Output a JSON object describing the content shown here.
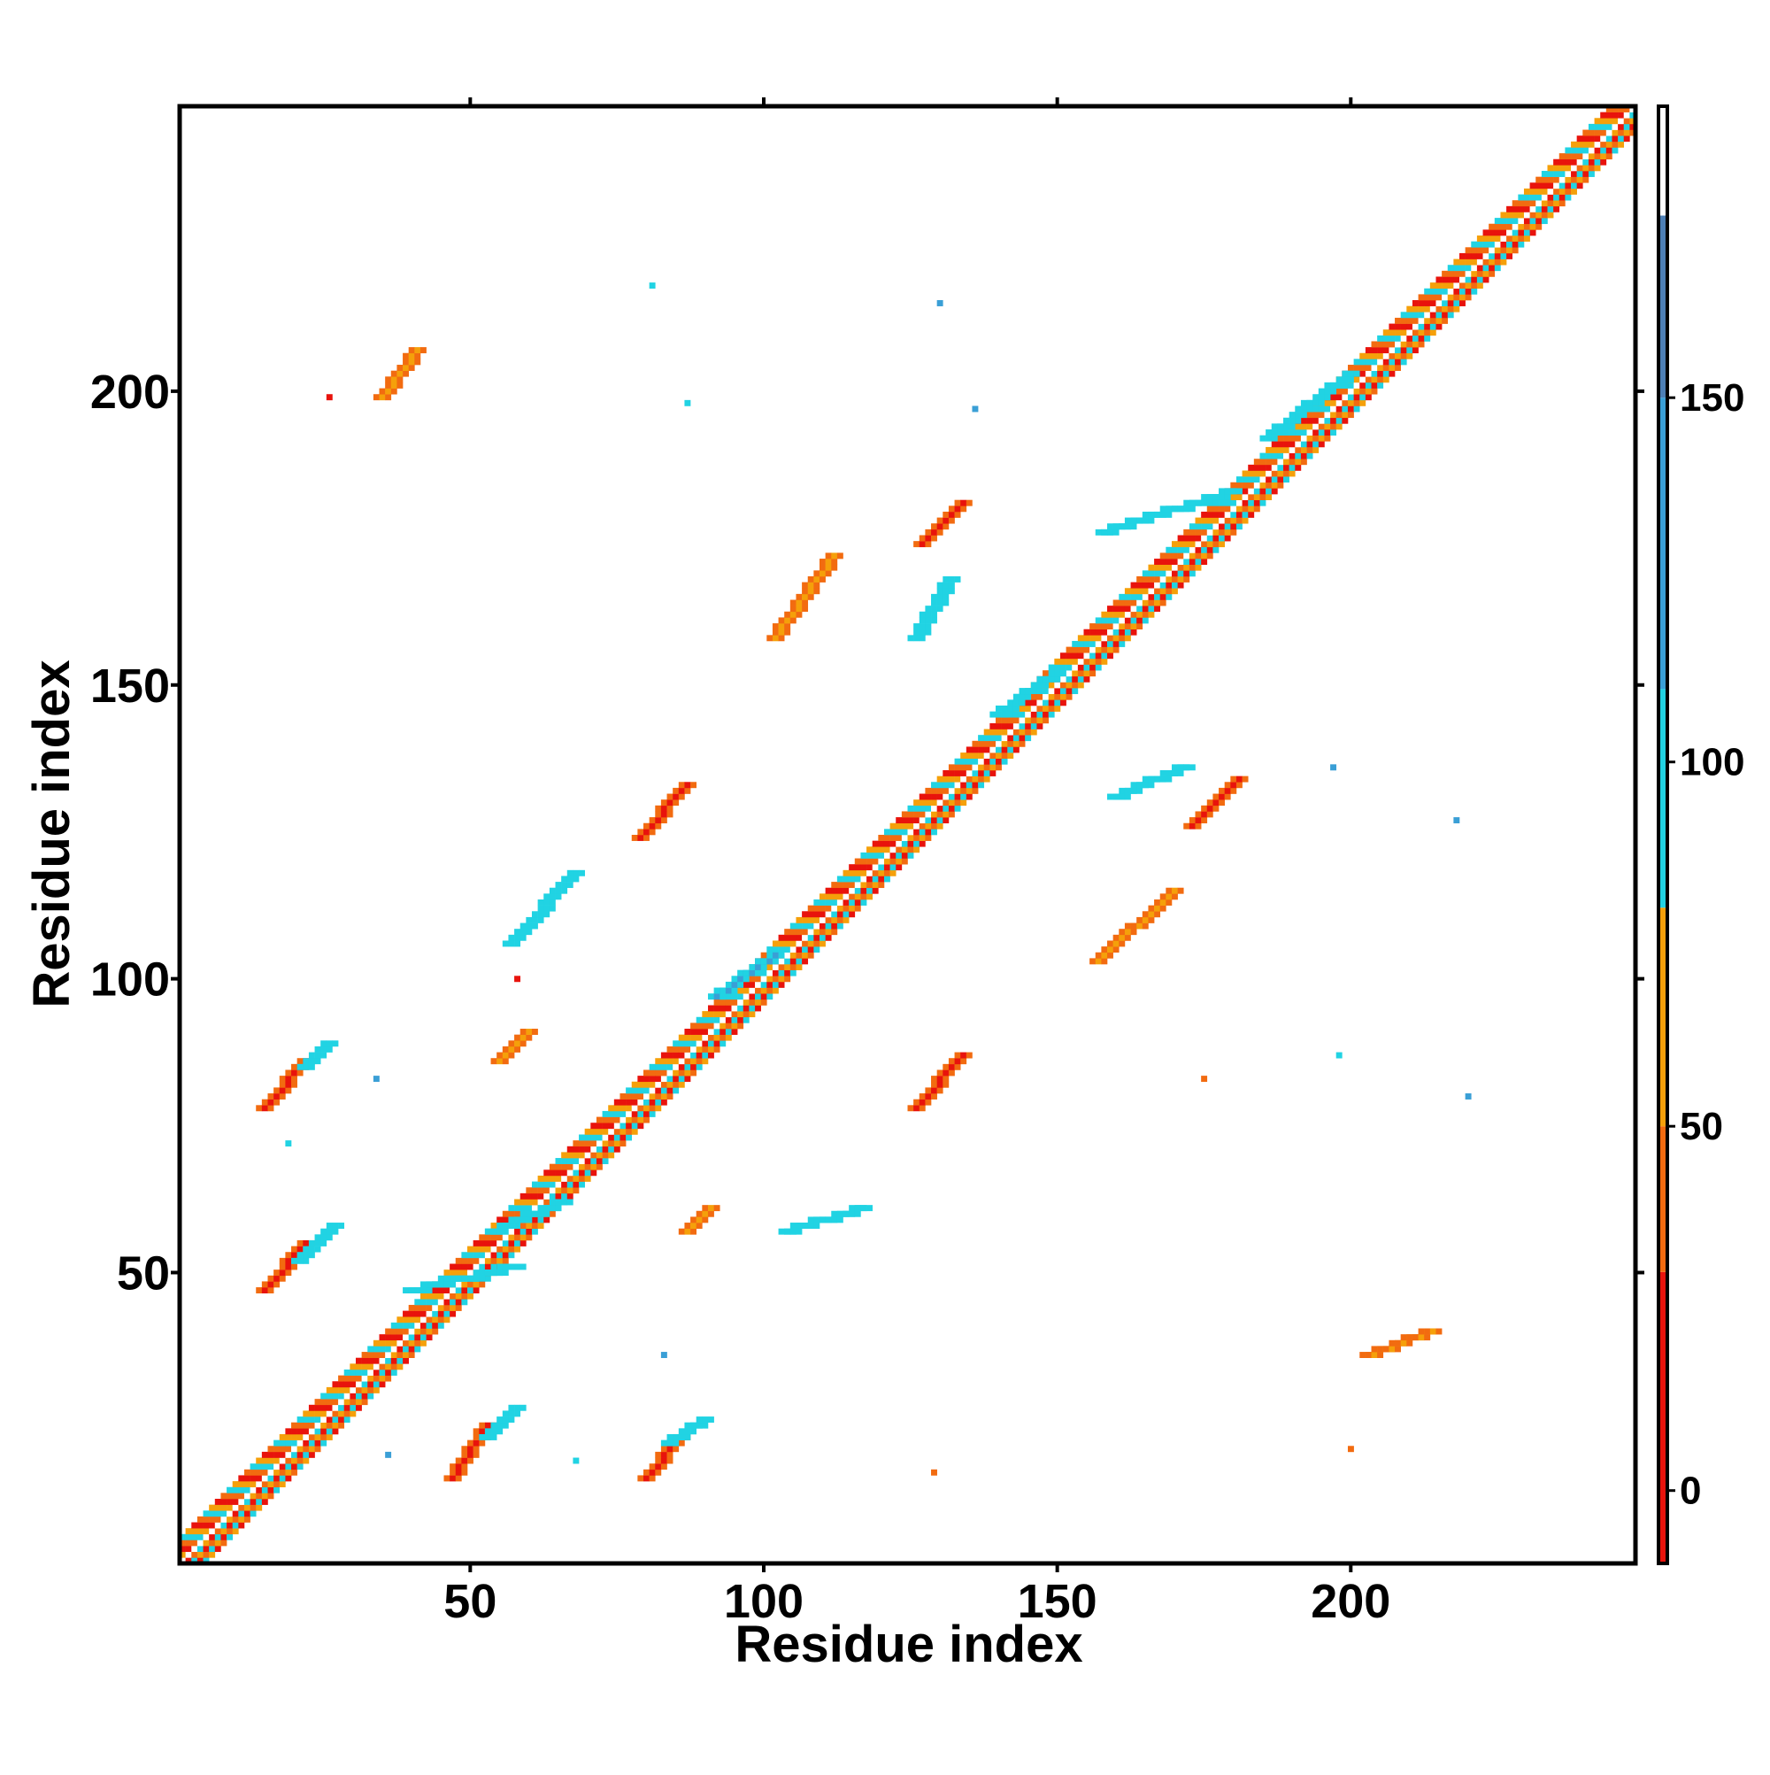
{
  "chart_data": {
    "type": "heatmap",
    "title": "",
    "xlabel": "Residue index",
    "ylabel": "Residue index",
    "xlim": [
      1,
      248
    ],
    "ylim": [
      1,
      248
    ],
    "x_ticks": [
      50,
      100,
      150,
      200
    ],
    "y_ticks": [
      50,
      100,
      150,
      200
    ],
    "grid": false,
    "colorbar": {
      "range": [
        -10,
        190
      ],
      "ticks": [
        0,
        50,
        100,
        150
      ],
      "bins": [
        {
          "from": -10,
          "to": 30,
          "color": "#e8130c"
        },
        {
          "from": 30,
          "to": 50,
          "color": "#f26b10"
        },
        {
          "from": 50,
          "to": 80,
          "color": "#f5a00a"
        },
        {
          "from": 80,
          "to": 110,
          "color": "#21d3e3"
        },
        {
          "from": 110,
          "to": 150,
          "color": "#3a9fd6"
        },
        {
          "from": 150,
          "to": 175,
          "color": "#4d7fb5"
        },
        {
          "from": 175,
          "to": 190,
          "color": "#ffffff"
        }
      ]
    },
    "diagonal_band": {
      "start": 1,
      "end": 248,
      "pattern": [
        "#f26b10",
        "#21d3e3",
        "#f5a00a",
        "#e8130c"
      ]
    },
    "regions": [
      {
        "x": [
          47,
          53
        ],
        "y": [
          15,
          24
        ],
        "value": 10
      },
      {
        "x": [
          53,
          58
        ],
        "y": [
          22,
          27
        ],
        "value": 95
      },
      {
        "x": [
          80,
          86
        ],
        "y": [
          15,
          22
        ],
        "value": 10
      },
      {
        "x": [
          84,
          90
        ],
        "y": [
          21,
          25
        ],
        "value": 95
      },
      {
        "x": [
          15,
          22
        ],
        "y": [
          47,
          55
        ],
        "value": 10
      },
      {
        "x": [
          21,
          27
        ],
        "y": [
          52,
          58
        ],
        "value": 100
      },
      {
        "x": [
          15,
          22
        ],
        "y": [
          78,
          86
        ],
        "value": 10
      },
      {
        "x": [
          22,
          26
        ],
        "y": [
          85,
          89
        ],
        "value": 95
      },
      {
        "x": [
          79,
          87
        ],
        "y": [
          124,
          133
        ],
        "value": 15
      },
      {
        "x": [
          126,
          134
        ],
        "y": [
          78,
          87
        ],
        "value": 15
      },
      {
        "x": [
          127,
          134
        ],
        "y": [
          174,
          181
        ],
        "value": 15
      },
      {
        "x": [
          173,
          181
        ],
        "y": [
          126,
          134
        ],
        "value": 15
      },
      {
        "x": [
          102,
          112
        ],
        "y": [
          158,
          172
        ],
        "value": 50
      },
      {
        "x": [
          157,
          170
        ],
        "y": [
          103,
          115
        ],
        "value": 50
      },
      {
        "x": [
          54,
          66
        ],
        "y": [
          57,
          62
        ],
        "value": 95
      },
      {
        "x": [
          87,
          91
        ],
        "y": [
          57,
          61
        ],
        "value": 60
      },
      {
        "x": [
          104,
          117
        ],
        "y": [
          57,
          61
        ],
        "value": 95
      },
      {
        "x": [
          57,
          68
        ],
        "y": [
          106,
          118
        ],
        "value": 95
      },
      {
        "x": [
          55,
          60
        ],
        "y": [
          86,
          91
        ],
        "value": 60
      },
      {
        "x": [
          40,
          58
        ],
        "y": [
          47,
          51
        ],
        "value": 100
      },
      {
        "x": [
          92,
          102
        ],
        "y": [
          97,
          104
        ],
        "value": 120
      },
      {
        "x": [
          186,
          200
        ],
        "y": [
          192,
          203
        ],
        "value": 100
      },
      {
        "x": [
          140,
          150
        ],
        "y": [
          145,
          152
        ],
        "value": 100
      },
      {
        "x": [
          158,
          180
        ],
        "y": [
          176,
          183
        ],
        "value": 95
      },
      {
        "x": [
          160,
          172
        ],
        "y": [
          131,
          136
        ],
        "value": 95
      },
      {
        "x": [
          126,
          132
        ],
        "y": [
          158,
          168
        ],
        "value": 95
      },
      {
        "x": [
          35,
          41
        ],
        "y": [
          199,
          207
        ],
        "value": 50
      },
      {
        "x": [
          203,
          214
        ],
        "y": [
          36,
          40
        ],
        "value": 50
      }
    ],
    "points": [
      {
        "x": 58,
        "y": 100,
        "value": 5
      },
      {
        "x": 175,
        "y": 83,
        "value": 45
      },
      {
        "x": 136,
        "y": 197,
        "value": 130
      },
      {
        "x": 197,
        "y": 136,
        "value": 130
      },
      {
        "x": 87,
        "y": 198,
        "value": 95
      },
      {
        "x": 129,
        "y": 16,
        "value": 40
      },
      {
        "x": 200,
        "y": 20,
        "value": 40
      },
      {
        "x": 68,
        "y": 18,
        "value": 95
      },
      {
        "x": 83,
        "y": 36,
        "value": 130
      },
      {
        "x": 26,
        "y": 199,
        "value": 20
      },
      {
        "x": 198,
        "y": 87,
        "value": 95
      },
      {
        "x": 220,
        "y": 80,
        "value": 120
      },
      {
        "x": 218,
        "y": 127,
        "value": 120
      },
      {
        "x": 81,
        "y": 218,
        "value": 95
      },
      {
        "x": 130,
        "y": 215,
        "value": 120
      },
      {
        "x": 36,
        "y": 19,
        "value": 120
      },
      {
        "x": 34,
        "y": 83,
        "value": 120
      },
      {
        "x": 19,
        "y": 72,
        "value": 95
      }
    ]
  }
}
